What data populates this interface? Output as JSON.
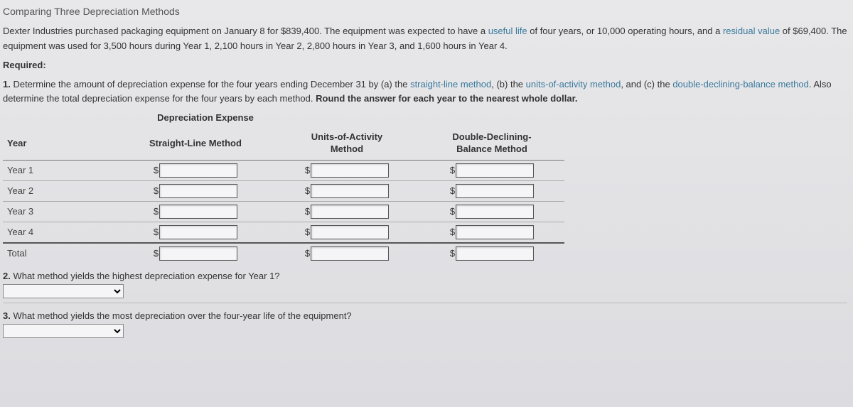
{
  "title": "Comparing Three Depreciation Methods",
  "problem": {
    "p1_a": "Dexter Industries purchased packaging equipment on January 8 for $839,400. The equipment was expected to have a ",
    "p1_link1": "useful life",
    "p1_b": " of four years, or 10,000 operating hours, and a ",
    "p1_link2": "residual value",
    "p1_c": " of $69,400. The equipment was used for 3,500 hours during Year 1, 2,100 hours in Year 2, 2,800 hours in Year 3, and 1,600 hours in Year 4."
  },
  "required_label": "Required:",
  "q1": {
    "num": "1.",
    "lead": "  Determine the amount of depreciation expense for the four years ending December 31 by (a) the ",
    "link_a": "straight-line method",
    "mid_ab": ", (b) the ",
    "link_b": "units-of-activity method",
    "mid_bc": ", and (c) the ",
    "link_c": "double-declining-balance method",
    "tail_a": ". Also determine the total depreciation expense for the four years by each method. ",
    "bold_tail": "Round the answer for each year to the nearest whole dollar."
  },
  "table": {
    "caption": "Depreciation Expense",
    "head_year": "Year",
    "head_sl": "Straight-Line Method",
    "head_uoa_l1": "Units-of-Activity",
    "head_uoa_l2": "Method",
    "head_ddb_l1": "Double-Declining-",
    "head_ddb_l2": "Balance Method",
    "rows": [
      {
        "label": "Year 1"
      },
      {
        "label": "Year 2"
      },
      {
        "label": "Year 3"
      },
      {
        "label": "Year 4"
      }
    ],
    "total_label": "Total",
    "currency": "$"
  },
  "q2": {
    "num": "2.",
    "text": "  What method yields the highest depreciation expense for Year 1?"
  },
  "q3": {
    "num": "3.",
    "text": "  What method yields the most depreciation over the four-year life of the equipment?"
  },
  "colors": {
    "link": "#3a7a9c",
    "text": "#333333",
    "bg_top": "#e8e8ea"
  }
}
